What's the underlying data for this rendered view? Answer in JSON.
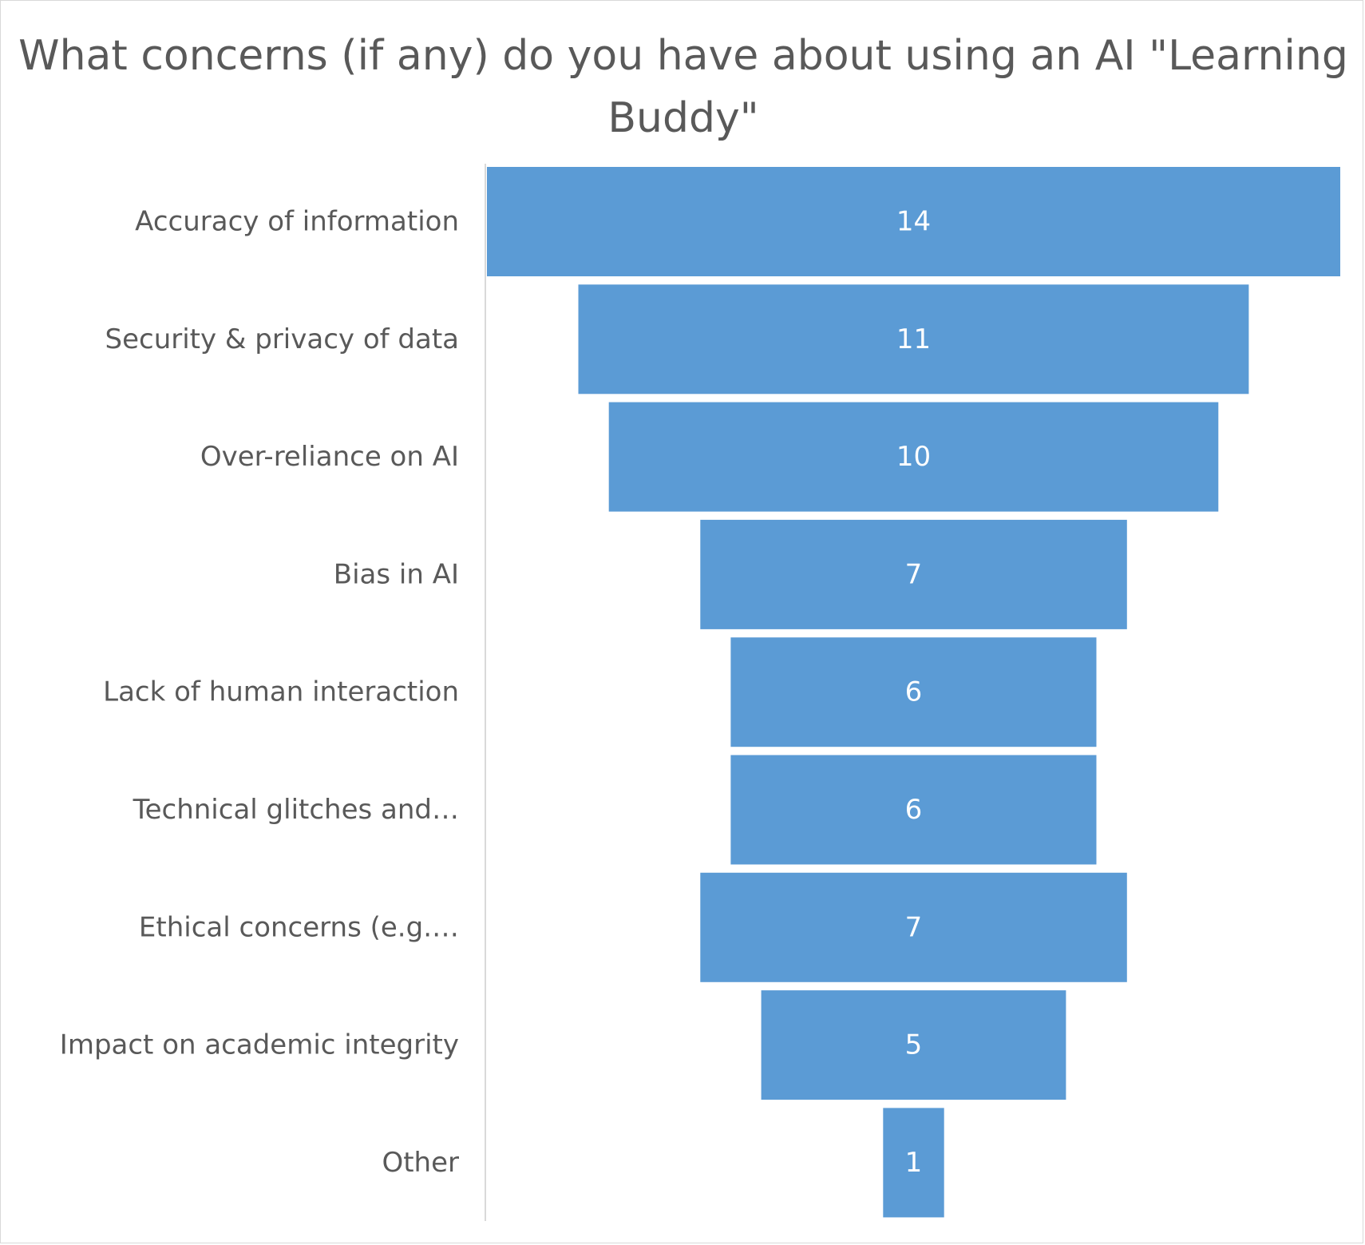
{
  "chart_data": {
    "type": "bar",
    "variant": "funnel",
    "title": "What concerns (if any) do you have about using an AI \"Learning Buddy\"",
    "categories": [
      "Accuracy of information",
      "Security & privacy of data",
      "Over-reliance on AI",
      "Bias in AI",
      "Lack of human interaction",
      "Technical glitches and…",
      "Ethical concerns (e.g.…",
      "Impact on academic integrity",
      "Other"
    ],
    "values": [
      14,
      11,
      10,
      7,
      6,
      6,
      7,
      5,
      1
    ],
    "bar_color": "#5b9bd5",
    "label_color": "#595959",
    "data_label_color": "#ffffff",
    "grid": false,
    "legend": "none"
  }
}
